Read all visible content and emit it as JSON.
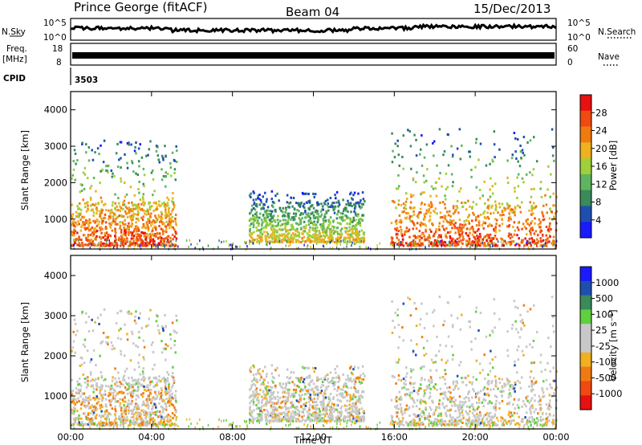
{
  "header": {
    "station": "Prince George (fitACF)",
    "beam": "Beam 04",
    "date": "15/Dec/2013"
  },
  "strips": {
    "nsky_label": "N.Sky",
    "nsearch_label": "N.Search",
    "nsky_ticks": [
      "10^5",
      "10^0"
    ],
    "nsearch_ticks": [
      "10^5",
      "10^0"
    ],
    "freq_label_1": "Freq.",
    "freq_label_2": "[MHz]",
    "freq_ticks": [
      "18",
      "8"
    ],
    "nave_label": "Nave",
    "nave_ticks": [
      "60",
      "0"
    ],
    "cpid_label": "CPID",
    "cpid_value": "3503"
  },
  "colors": {
    "power_scale": [
      "#1a1aff",
      "#1e4fb0",
      "#3a8a5a",
      "#5fb55f",
      "#9fd03a",
      "#f0b020",
      "#f07a10",
      "#f04a10",
      "#e81010"
    ],
    "velocity_scale": [
      "#e81010",
      "#f04a10",
      "#f07a10",
      "#f0b020",
      "#c8c8c8",
      "#c8c8c8",
      "#5fd040",
      "#3a8a5a",
      "#1e4fb0",
      "#1a1aff"
    ],
    "ground_scatter": "#c8c8c8"
  },
  "chart_data": [
    {
      "type": "heatmap",
      "title": "",
      "xlabel": "Time UT",
      "ylabel": "Slant Range [km]",
      "x_ticks": [
        "00:00",
        "04:00",
        "08:00",
        "12:00",
        "16:00",
        "20:00",
        "00:00"
      ],
      "y_ticks": [
        "1000",
        "2000",
        "3000",
        "4000"
      ],
      "xlim_hours": [
        0,
        24
      ],
      "ylim_km": [
        180,
        4500
      ],
      "colorbar": {
        "label": "Power [dB]",
        "tick_labels": [
          "4",
          "8",
          "12",
          "16",
          "20",
          "24",
          "28"
        ],
        "range_db": [
          0,
          32
        ]
      },
      "echo_regions": [
        {
          "t_start_hours": 0.0,
          "t_end_hours": 5.2,
          "range_min_km": 300,
          "range_max_km": 3200,
          "peak_db": 28
        },
        {
          "t_start_hours": 8.8,
          "t_end_hours": 14.5,
          "range_min_km": 400,
          "range_max_km": 1800,
          "peak_db": 20
        },
        {
          "t_start_hours": 15.8,
          "t_end_hours": 24.0,
          "range_min_km": 300,
          "range_max_km": 3500,
          "peak_db": 28
        }
      ]
    },
    {
      "type": "heatmap",
      "title": "",
      "xlabel": "Time UT",
      "ylabel": "Slant Range [km]",
      "x_ticks": [
        "00:00",
        "04:00",
        "08:00",
        "12:00",
        "16:00",
        "20:00",
        "00:00"
      ],
      "y_ticks": [
        "1000",
        "2000",
        "3000",
        "4000"
      ],
      "xlim_hours": [
        0,
        24
      ],
      "ylim_km": [
        180,
        4500
      ],
      "colorbar": {
        "label": "Velocity [m s⁻¹]",
        "tick_labels": [
          "1000",
          "500",
          "100",
          "25",
          "-25",
          "-100",
          "-500",
          "-1000"
        ]
      }
    }
  ]
}
